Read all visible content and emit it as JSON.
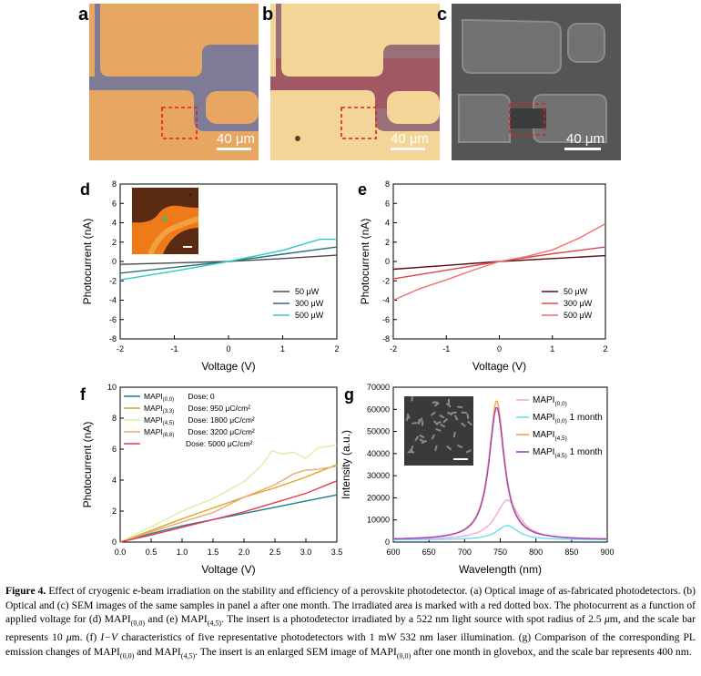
{
  "panels_top": [
    {
      "letter": "a",
      "scalebar": "40 μm"
    },
    {
      "letter": "b",
      "scalebar": "40 μm"
    },
    {
      "letter": "c",
      "scalebar": "40 μm"
    }
  ],
  "colors": {
    "pad_orange": "#e7a763",
    "substrate_blue": "#7f7b97",
    "pad_light": "#f4d598",
    "sem_bg": "#555555",
    "sem_pad": "#727272",
    "red_box": "#e02020"
  },
  "chart_data": [
    {
      "id": "d",
      "type": "line",
      "letter": "d",
      "xlabel": "Voltage (V)",
      "ylabel": "Photocurrent (nA)",
      "xlim": [
        -2,
        2
      ],
      "ylim": [
        -8,
        8
      ],
      "xticks": [
        "-2",
        "-1",
        "0",
        "1",
        "2"
      ],
      "yticks": [
        "-8",
        "-6",
        "-4",
        "-2",
        "0",
        "2",
        "4",
        "6",
        "8"
      ],
      "legend_position": "bottom-right",
      "series": [
        {
          "name": "50 μW",
          "color": "#4a4a4a",
          "x": [
            -2,
            -1,
            0,
            1,
            2
          ],
          "values": [
            -0.3,
            -0.15,
            0,
            0.3,
            0.65
          ]
        },
        {
          "name": "300 μW",
          "color": "#2a7079",
          "x": [
            -2,
            -1,
            0,
            1,
            2
          ],
          "values": [
            -1.2,
            -0.6,
            0,
            0.75,
            1.5
          ]
        },
        {
          "name": "500 μW",
          "color": "#33c8c8",
          "x": [
            -2,
            -1,
            0,
            1,
            1.5,
            1.7,
            2
          ],
          "values": [
            -1.9,
            -1.0,
            0,
            1.15,
            2.0,
            2.3,
            2.3
          ]
        }
      ]
    },
    {
      "id": "e",
      "type": "line",
      "letter": "e",
      "xlabel": "Voltage (V)",
      "ylabel": "Photocurrent (nA)",
      "xlim": [
        -2,
        2
      ],
      "ylim": [
        -8,
        8
      ],
      "xticks": [
        "-2",
        "-1",
        "0",
        "1",
        "2"
      ],
      "yticks": [
        "-8",
        "-6",
        "-4",
        "-2",
        "0",
        "2",
        "4",
        "6",
        "8"
      ],
      "legend_position": "bottom-right",
      "series": [
        {
          "name": "50 μW",
          "color": "#5a1010",
          "x": [
            -2,
            -1,
            0,
            1,
            2
          ],
          "values": [
            -0.8,
            -0.4,
            0,
            0.3,
            0.6
          ]
        },
        {
          "name": "300 μW",
          "color": "#e04646",
          "x": [
            -2,
            -1,
            0,
            1,
            2
          ],
          "values": [
            -1.8,
            -0.9,
            0,
            0.8,
            1.5
          ]
        },
        {
          "name": "500 μW",
          "color": "#f27070",
          "x": [
            -2,
            -1.5,
            -1,
            -0.5,
            0,
            0.5,
            1,
            1.5,
            2
          ],
          "values": [
            -4.0,
            -2.8,
            -1.9,
            -0.9,
            0,
            0.5,
            1.2,
            2.4,
            3.9
          ]
        }
      ]
    },
    {
      "id": "f",
      "type": "line",
      "letter": "f",
      "xlabel": "Voltage (V)",
      "ylabel": "Photocurrent (nA)",
      "xlim": [
        0,
        3.5
      ],
      "ylim": [
        0,
        10
      ],
      "xticks": [
        "0.0",
        "0.5",
        "1.0",
        "1.5",
        "2.0",
        "2.5",
        "3.0",
        "3.5"
      ],
      "yticks": [
        "0",
        "2",
        "4",
        "6",
        "8",
        "10"
      ],
      "legend_position": "top-left",
      "series": [
        {
          "name": "MAPI",
          "sub": "(0,0)",
          "dose": "Dose: 0",
          "color": "#1f7f8a",
          "x": [
            0,
            0.5,
            1.0,
            1.5,
            2.0,
            2.5,
            3.0,
            3.5
          ],
          "values": [
            0,
            0.55,
            1.05,
            1.45,
            1.85,
            2.25,
            2.65,
            3.05
          ]
        },
        {
          "name": "MAPI",
          "sub": "(3,3)",
          "dose": "Dose: 950 μC/cm²",
          "color": "#d9a81a",
          "x": [
            0,
            0.5,
            1.0,
            1.5,
            2.0,
            2.5,
            3.0,
            3.5
          ],
          "values": [
            0,
            0.75,
            1.5,
            2.2,
            2.9,
            3.5,
            4.2,
            5.0
          ]
        },
        {
          "name": "MAPI",
          "sub": "(4,5)",
          "dose": "Dose: 1800 μC/cm²",
          "color": "#e3eba4",
          "x": [
            0,
            0.5,
            1.0,
            1.5,
            2.0,
            2.3,
            2.45,
            2.6,
            2.8,
            3.0,
            3.2,
            3.4,
            3.5
          ],
          "values": [
            0,
            1.0,
            2.0,
            2.8,
            3.9,
            5.0,
            5.9,
            5.7,
            5.8,
            5.4,
            6.1,
            6.2,
            6.3
          ]
        },
        {
          "name": "MAPI",
          "sub": "(8,8)",
          "dose": "Dose: 3200 μC/cm²",
          "color": "#f2a67a",
          "x": [
            0,
            0.5,
            1.0,
            1.5,
            2.0,
            2.5,
            2.8,
            3.0,
            3.2,
            3.5
          ],
          "values": [
            0,
            0.65,
            1.3,
            1.9,
            2.9,
            3.7,
            4.4,
            4.65,
            4.7,
            4.9
          ]
        },
        {
          "name": "",
          "sub": "",
          "dose": "Dose: 5000 μC/cm²",
          "color": "#e83a4c",
          "x": [
            0,
            0.5,
            1.0,
            1.5,
            2.0,
            2.5,
            3.0,
            3.5
          ],
          "values": [
            0,
            0.45,
            0.95,
            1.45,
            1.95,
            2.55,
            3.15,
            3.95
          ]
        }
      ]
    },
    {
      "id": "g",
      "type": "line",
      "letter": "g",
      "xlabel": "Wavelength (nm)",
      "ylabel": "Intensity (a.u.)",
      "xlim": [
        600,
        900
      ],
      "ylim": [
        0,
        70000
      ],
      "xticks": [
        "600",
        "650",
        "700",
        "750",
        "800",
        "850",
        "900"
      ],
      "yticks": [
        "0",
        "10000",
        "20000",
        "30000",
        "40000",
        "50000",
        "60000",
        "70000"
      ],
      "legend_position": "top-right",
      "series": [
        {
          "name": "MAPI",
          "sub": "(0,0)",
          "suffix": "",
          "color": "#f2a8e0",
          "center": 760,
          "width": 20,
          "peak": 18000
        },
        {
          "name": "MAPI",
          "sub": "(0,0)",
          "suffix": " 1 month",
          "color": "#66e0f0",
          "center": 760,
          "width": 18,
          "peak": 6500
        },
        {
          "name": "MAPI",
          "sub": "(4,5)",
          "suffix": "",
          "color": "#f2a24a",
          "center": 745,
          "width": 13,
          "peak": 63000
        },
        {
          "name": "MAPI",
          "sub": "(4,5)",
          "suffix": " 1 month",
          "color": "#a040c8",
          "center": 745,
          "width": 13,
          "peak": 60000
        }
      ]
    }
  ],
  "caption": {
    "label": "Figure 4.",
    "parts": [
      {
        "t": " Effect of cryogenic e-beam irradiation on the stability and efficiency of a perovskite photodetector. (a) Optical image of as-fabricated photodetectors. (b) Optical and (c) SEM images of the same samples in panel a after one month. The irradiated area is marked with a red dotted box. The photocurrent as a function of applied voltage for (d) MAPI"
      },
      {
        "sub": "(0,0)"
      },
      {
        "t": " and (e) MAPI"
      },
      {
        "sub": "(4,5)"
      },
      {
        "t": ". The insert is a photodetector irradiated by a 522 nm light source with spot radius of 2.5 "
      },
      {
        "i": "μ"
      },
      {
        "t": "m, and the scale bar represents 10 "
      },
      {
        "i": "μ"
      },
      {
        "t": "m. (f) "
      },
      {
        "i": "I−V"
      },
      {
        "t": " characteristics of five representative photodetectors with 1 mW 532 nm laser illumination. (g) Comparison of the corresponding PL emission changes of MAPI"
      },
      {
        "sub": "(0,0)"
      },
      {
        "t": " and MAPI"
      },
      {
        "sub": "(4,5)"
      },
      {
        "t": ". The insert is an enlarged SEM image of MAPI"
      },
      {
        "sub": "(0,0)"
      },
      {
        "t": " after one month in glovebox, and the scale bar represents 400 nm."
      }
    ]
  }
}
